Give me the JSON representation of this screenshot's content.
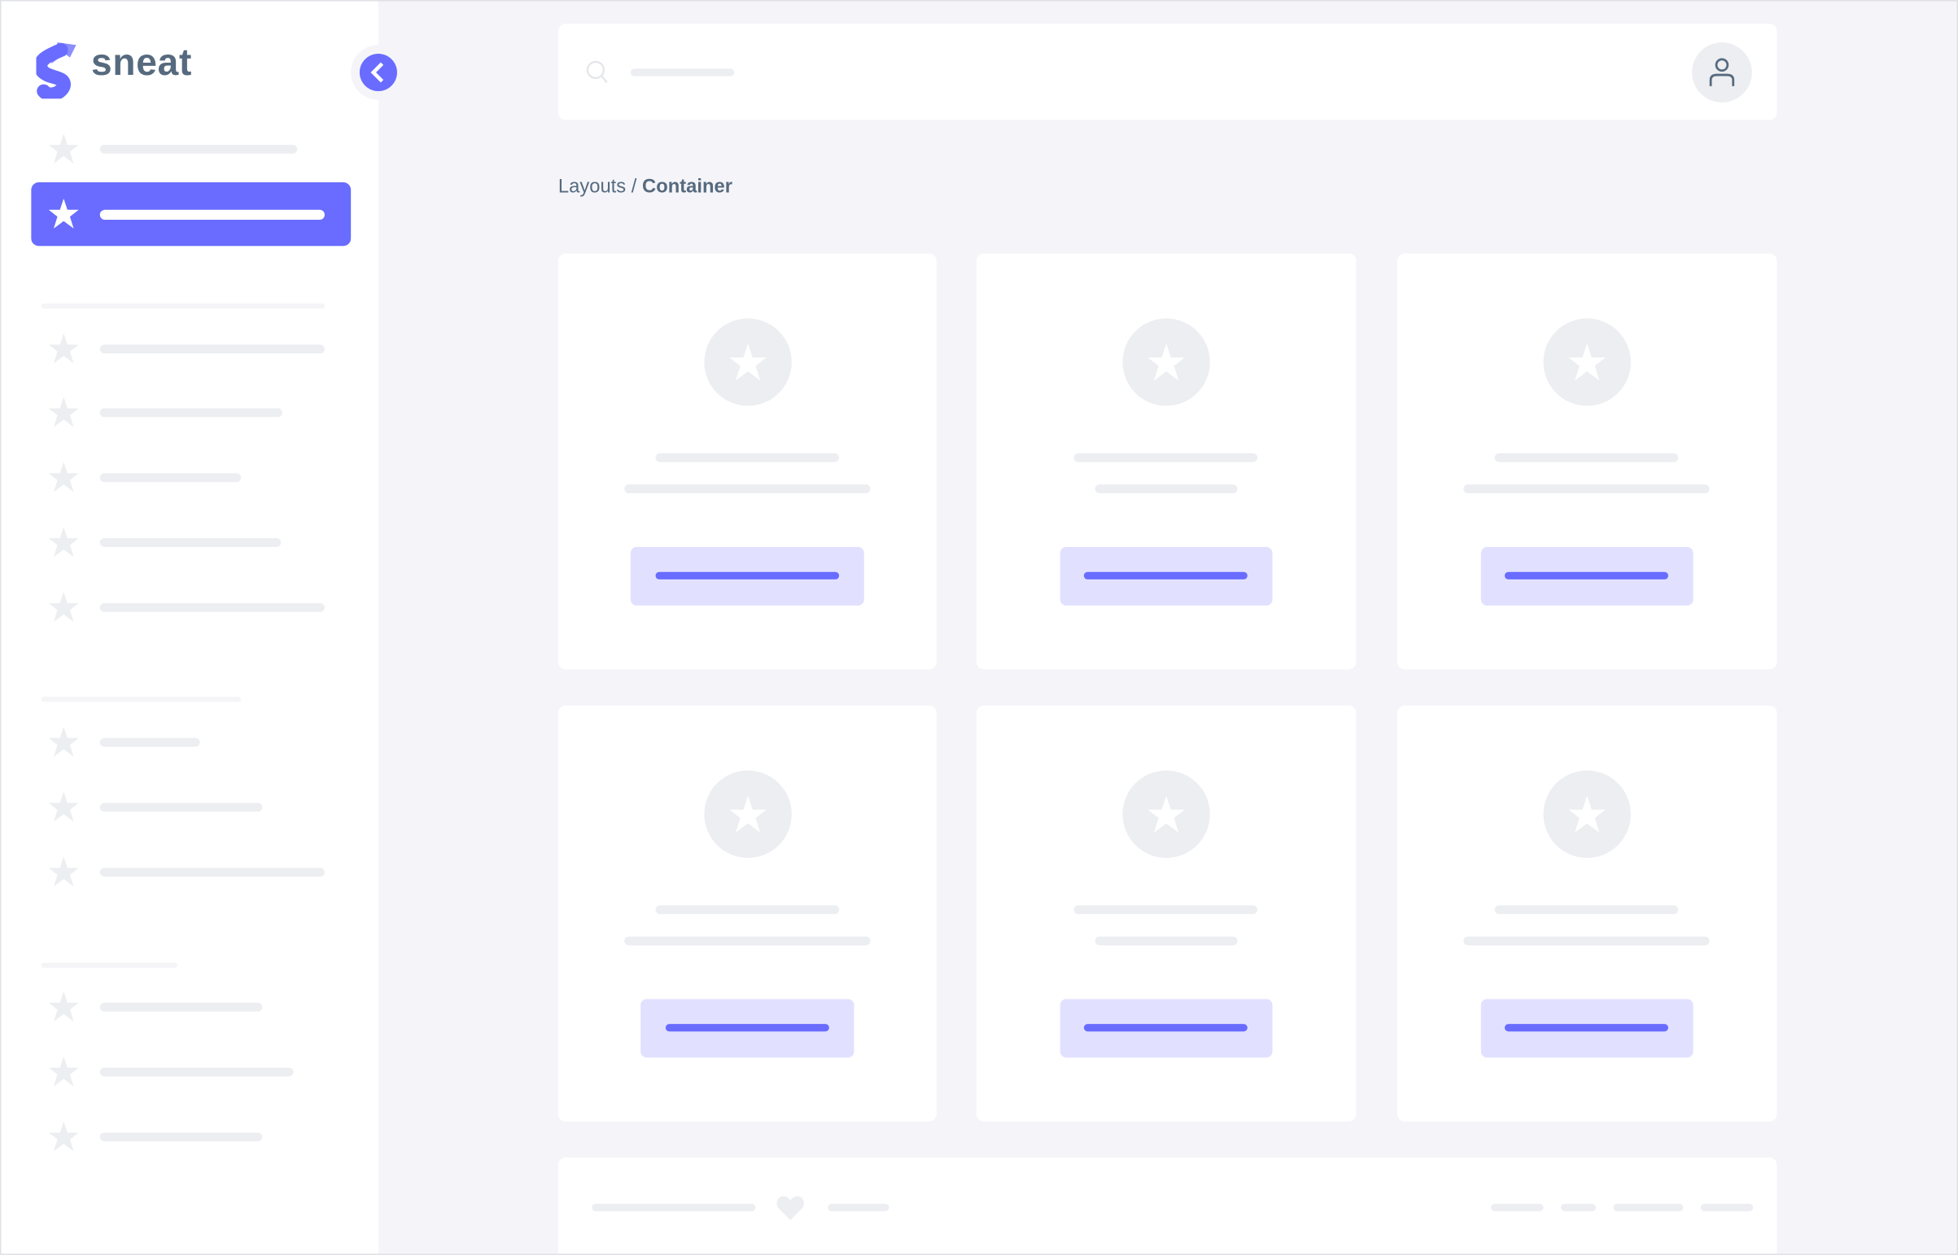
{
  "app": {
    "logo_text": "sneat",
    "logo_icon": "sneat-s-logo"
  },
  "colors": {
    "primary": "#696cff",
    "primary_light": "#e1e1ff",
    "placeholder": "#eceef1",
    "background": "#f5f5f9",
    "text": "#566a7f"
  },
  "sidebar": {
    "toggle_icon": "chevron-left-icon",
    "item_icon": "star-icon",
    "active_index": 1,
    "sections": [
      {
        "items": 2
      },
      {
        "items": 5
      },
      {
        "items": 3
      },
      {
        "items": 3
      }
    ]
  },
  "navbar": {
    "search_icon": "search-icon",
    "avatar_icon": "user-icon"
  },
  "breadcrumb": {
    "parent": "Layouts",
    "separator": " / ",
    "current": "Container"
  },
  "cards": {
    "count": 6,
    "icon": "star-icon"
  },
  "footer": {
    "icon": "heart-icon"
  }
}
